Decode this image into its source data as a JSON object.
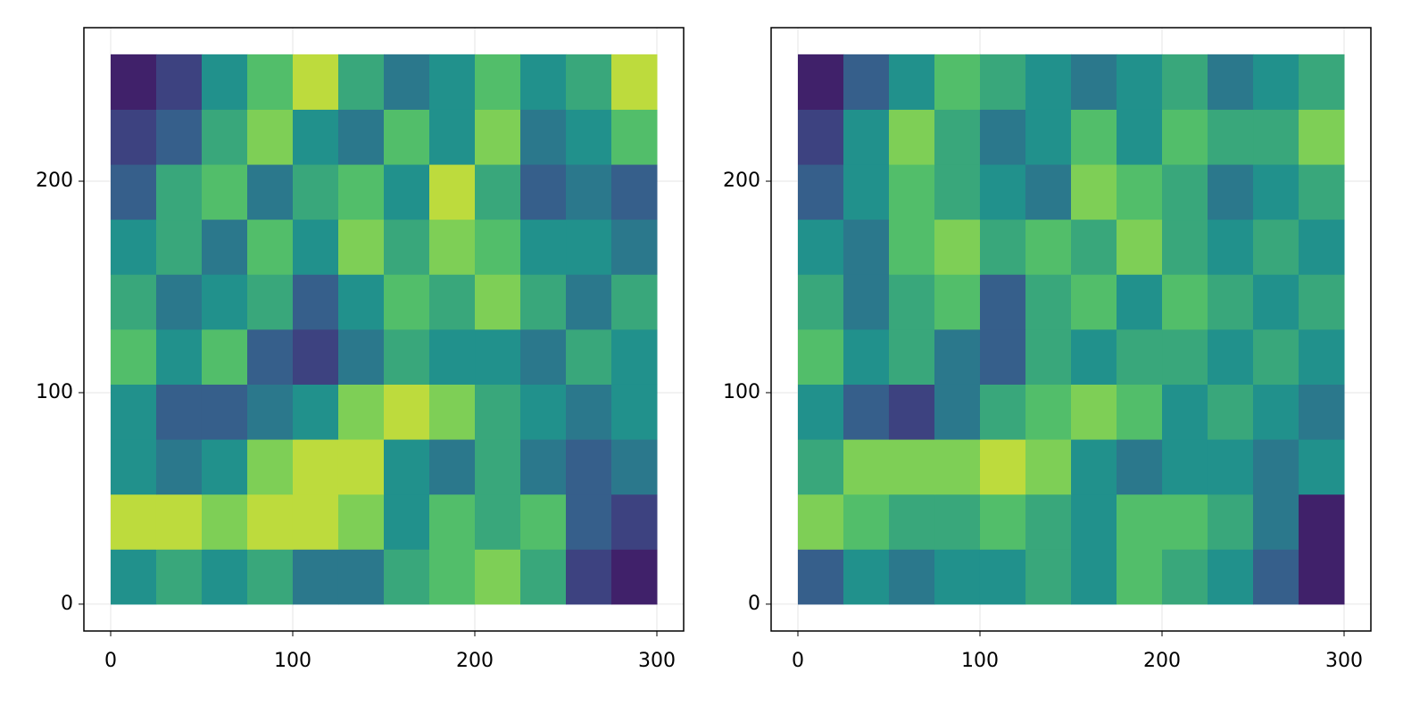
{
  "chart_data": [
    {
      "type": "heatmap",
      "image_x": [
        0,
        300
      ],
      "image_y": [
        0,
        260
      ],
      "xlim": [
        -14.7,
        314.7
      ],
      "ylim": [
        -12.7,
        272.6
      ],
      "xticks": [
        0,
        100,
        200,
        300
      ],
      "yticks": [
        0,
        100,
        200
      ],
      "grid": true,
      "clim": [
        0,
        1
      ],
      "colormap": [
        "#440154",
        "#3b528b",
        "#21918c",
        "#5ec962",
        "#fde725"
      ],
      "values": [
        [
          0.5,
          0.6,
          0.5,
          0.6,
          0.4,
          0.4,
          0.6,
          0.7,
          0.8,
          0.6,
          0.2,
          0.1
        ],
        [
          0.9,
          0.9,
          0.8,
          0.9,
          0.9,
          0.8,
          0.5,
          0.7,
          0.6,
          0.7,
          0.3,
          0.2
        ],
        [
          0.5,
          0.4,
          0.5,
          0.8,
          0.9,
          0.9,
          0.5,
          0.4,
          0.6,
          0.4,
          0.3,
          0.4
        ],
        [
          0.5,
          0.3,
          0.3,
          0.4,
          0.5,
          0.8,
          0.9,
          0.8,
          0.6,
          0.5,
          0.4,
          0.5
        ],
        [
          0.7,
          0.5,
          0.7,
          0.3,
          0.2,
          0.4,
          0.6,
          0.5,
          0.5,
          0.4,
          0.6,
          0.5
        ],
        [
          0.6,
          0.4,
          0.5,
          0.6,
          0.3,
          0.5,
          0.7,
          0.6,
          0.8,
          0.6,
          0.4,
          0.6
        ],
        [
          0.5,
          0.6,
          0.4,
          0.7,
          0.5,
          0.8,
          0.6,
          0.8,
          0.7,
          0.5,
          0.5,
          0.4
        ],
        [
          0.3,
          0.6,
          0.7,
          0.4,
          0.6,
          0.7,
          0.5,
          0.9,
          0.6,
          0.3,
          0.4,
          0.3
        ],
        [
          0.2,
          0.3,
          0.6,
          0.8,
          0.5,
          0.4,
          0.7,
          0.5,
          0.8,
          0.4,
          0.5,
          0.7
        ],
        [
          0.1,
          0.2,
          0.5,
          0.7,
          0.9,
          0.6,
          0.4,
          0.5,
          0.7,
          0.5,
          0.6,
          0.9
        ]
      ]
    },
    {
      "type": "heatmap",
      "image_x": [
        0,
        300
      ],
      "image_y": [
        0,
        260
      ],
      "xlim": [
        -14.7,
        314.7
      ],
      "ylim": [
        -12.7,
        272.6
      ],
      "xticks": [
        0,
        100,
        200,
        300
      ],
      "yticks": [
        0,
        100,
        200
      ],
      "grid": true,
      "clim": [
        0,
        1
      ],
      "colormap": [
        "#440154",
        "#3b528b",
        "#21918c",
        "#5ec962",
        "#fde725"
      ],
      "values": [
        [
          0.3,
          0.5,
          0.4,
          0.5,
          0.5,
          0.6,
          0.5,
          0.7,
          0.6,
          0.5,
          0.3,
          0.1
        ],
        [
          0.8,
          0.7,
          0.6,
          0.6,
          0.7,
          0.6,
          0.5,
          0.7,
          0.7,
          0.6,
          0.4,
          0.1
        ],
        [
          0.6,
          0.8,
          0.8,
          0.8,
          0.9,
          0.8,
          0.5,
          0.4,
          0.5,
          0.5,
          0.4,
          0.5
        ],
        [
          0.5,
          0.3,
          0.2,
          0.4,
          0.6,
          0.7,
          0.8,
          0.7,
          0.5,
          0.6,
          0.5,
          0.4
        ],
        [
          0.7,
          0.5,
          0.6,
          0.4,
          0.3,
          0.6,
          0.5,
          0.6,
          0.6,
          0.5,
          0.6,
          0.5
        ],
        [
          0.6,
          0.4,
          0.6,
          0.7,
          0.3,
          0.6,
          0.7,
          0.5,
          0.7,
          0.6,
          0.5,
          0.6
        ],
        [
          0.5,
          0.4,
          0.7,
          0.8,
          0.6,
          0.7,
          0.6,
          0.8,
          0.6,
          0.5,
          0.6,
          0.5
        ],
        [
          0.3,
          0.5,
          0.7,
          0.6,
          0.5,
          0.4,
          0.8,
          0.7,
          0.6,
          0.4,
          0.5,
          0.6
        ],
        [
          0.2,
          0.5,
          0.8,
          0.6,
          0.4,
          0.5,
          0.7,
          0.5,
          0.7,
          0.6,
          0.6,
          0.8
        ],
        [
          0.1,
          0.3,
          0.5,
          0.7,
          0.6,
          0.5,
          0.4,
          0.5,
          0.6,
          0.4,
          0.5,
          0.6
        ]
      ]
    }
  ]
}
